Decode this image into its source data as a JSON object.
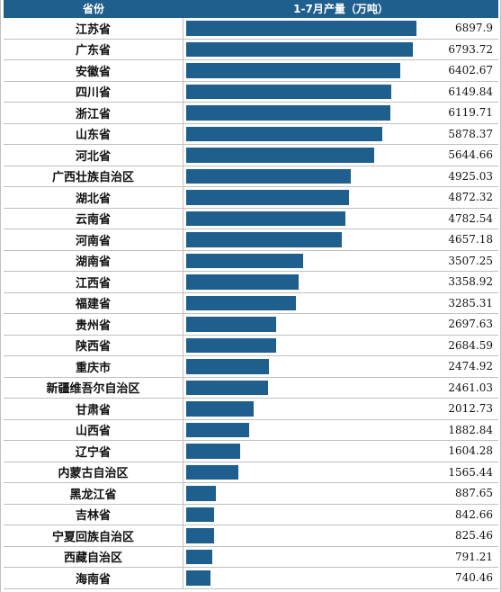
{
  "chart_data": {
    "type": "bar",
    "header": {
      "province": "省份",
      "value": "1-7月产量（万吨）"
    },
    "categories": [
      "江苏省",
      "广东省",
      "安徽省",
      "四川省",
      "浙江省",
      "山东省",
      "河北省",
      "广西壮族自治区",
      "湖北省",
      "云南省",
      "河南省",
      "湖南省",
      "江西省",
      "福建省",
      "贵州省",
      "陕西省",
      "重庆市",
      "新疆维吾尔自治区",
      "甘肃省",
      "山西省",
      "辽宁省",
      "内蒙古自治区",
      "黑龙江省",
      "吉林省",
      "宁夏回族自治区",
      "西藏自治区",
      "海南省"
    ],
    "values": [
      6897.9,
      6793.72,
      6402.67,
      6149.84,
      6119.71,
      5878.37,
      5644.66,
      4925.03,
      4872.32,
      4782.54,
      4657.18,
      3507.25,
      3358.92,
      3285.31,
      2697.63,
      2684.59,
      2474.92,
      2461.03,
      2012.73,
      1882.84,
      1604.28,
      1565.44,
      887.65,
      842.66,
      825.46,
      791.21,
      740.46
    ],
    "value_labels": [
      "6897.9",
      "6793.72",
      "6402.67",
      "6149.84",
      "6119.71",
      "5878.37",
      "5644.66",
      "4925.03",
      "4872.32",
      "4782.54",
      "4657.18",
      "3507.25",
      "3358.92",
      "3285.31",
      "2697.63",
      "2684.59",
      "2474.92",
      "2461.03",
      "2012.73",
      "1882.84",
      "1604.28",
      "1565.44",
      "887.65",
      "842.66",
      "825.46",
      "791.21",
      "740.46"
    ],
    "bar_color": "#1f5f8d",
    "header_color": "#1f5f8d"
  }
}
